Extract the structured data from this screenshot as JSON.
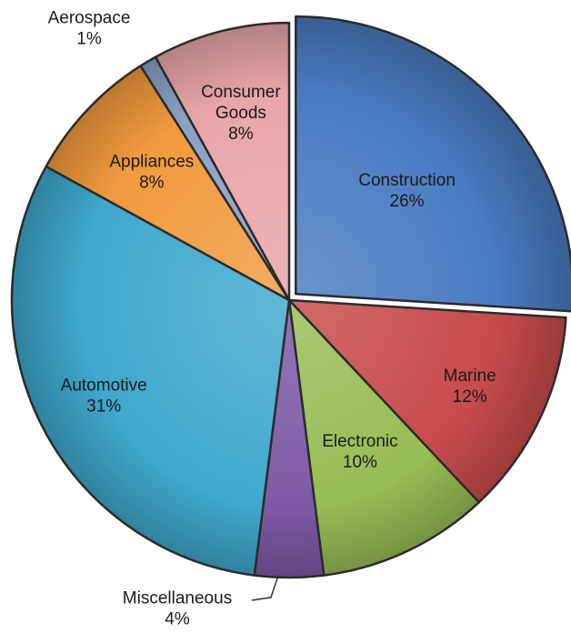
{
  "chart_data": {
    "type": "pie",
    "title": "",
    "slices": [
      {
        "name": "Construction",
        "value": 26,
        "label": "26%",
        "color": "#4a7cc2"
      },
      {
        "name": "Marine",
        "value": 12,
        "label": "12%",
        "color": "#c84b4b"
      },
      {
        "name": "Electronic",
        "value": 10,
        "label": "10%",
        "color": "#97bd55"
      },
      {
        "name": "Miscellaneous",
        "value": 4,
        "label": "4%",
        "color": "#7d5aa6"
      },
      {
        "name": "Automotive",
        "value": 31,
        "label": "31%",
        "color": "#3fa8cc"
      },
      {
        "name": "Appliances",
        "value": 8,
        "label": "8%",
        "color": "#f19a3e"
      },
      {
        "name": "Aerospace",
        "value": 1,
        "label": "1%",
        "color": "#8aa2c4"
      },
      {
        "name": "Consumer Goods",
        "value": 8,
        "label": "8%",
        "color": "#e8a5a8"
      }
    ],
    "legend": "none",
    "data_labels": "category-and-percent"
  }
}
